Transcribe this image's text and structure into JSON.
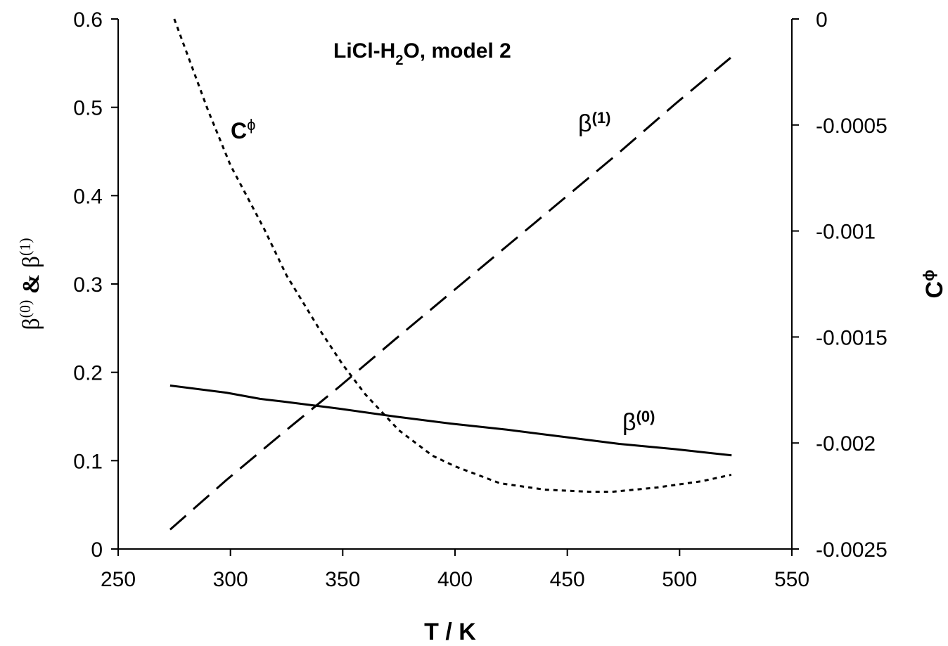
{
  "chart_data": {
    "type": "line",
    "title": {
      "prefix": "LiCl-H",
      "sub": "2",
      "suffix": "O, model 2"
    },
    "xlabel": "T / K",
    "ylabel_left": {
      "b0": "β",
      "b0_sup": "(0)",
      "amp": " & ",
      "b1": "β",
      "b1_sup": "(1)"
    },
    "ylabel_right": {
      "main": "C",
      "sup": "ϕ"
    },
    "xlim": [
      250,
      550
    ],
    "xticks": [
      "250",
      "300",
      "350",
      "400",
      "450",
      "500",
      "550"
    ],
    "ylim_left": [
      0,
      0.6
    ],
    "yticks_left": [
      "0",
      "0.1",
      "0.2",
      "0.3",
      "0.4",
      "0.5",
      "0.6"
    ],
    "ylim_right": [
      -0.0025,
      0
    ],
    "yticks_right": [
      "0",
      "-0.0005",
      "-0.001",
      "-0.0015",
      "-0.002",
      "-0.0025"
    ],
    "grid": false,
    "series": [
      {
        "name": "β(0)",
        "label": {
          "main": "β",
          "sup": "(0)"
        },
        "axis": "left",
        "style": "solid",
        "x": [
          273.15,
          298.15,
          313.15,
          323.15,
          348.15,
          373.15,
          398.15,
          423.15,
          448.15,
          473.15,
          498.15,
          523.15
        ],
        "y": [
          0.185,
          0.177,
          0.17,
          0.167,
          0.159,
          0.15,
          0.142,
          0.135,
          0.127,
          0.119,
          0.113,
          0.106
        ]
      },
      {
        "name": "β(1)",
        "label": {
          "main": "β",
          "sup": "(1)"
        },
        "axis": "left",
        "style": "dashed",
        "x": [
          273.15,
          298.15,
          323.15,
          348.15,
          373.15,
          398.15,
          423.15,
          448.15,
          473.15,
          498.15,
          523.15
        ],
        "y": [
          0.022,
          0.078,
          0.131,
          0.183,
          0.237,
          0.29,
          0.343,
          0.396,
          0.449,
          0.504,
          0.557
        ]
      },
      {
        "name": "Cϕ",
        "label": {
          "main": "C",
          "sup": "ϕ"
        },
        "axis": "right",
        "style": "dotted",
        "x": [
          275,
          290,
          300,
          315,
          325,
          340,
          350,
          360,
          375,
          390,
          400,
          410,
          420,
          430,
          440,
          450,
          460,
          470,
          480,
          490,
          500,
          510,
          523
        ],
        "y": [
          -0.0,
          -0.00043,
          -0.00069,
          -0.00099,
          -0.00121,
          -0.00147,
          -0.00163,
          -0.00177,
          -0.00194,
          -0.00206,
          -0.00211,
          -0.00215,
          -0.00219,
          -0.002205,
          -0.00222,
          -0.002225,
          -0.00223,
          -0.00223,
          -0.00222,
          -0.00221,
          -0.002195,
          -0.00218,
          -0.00215
        ]
      }
    ]
  }
}
